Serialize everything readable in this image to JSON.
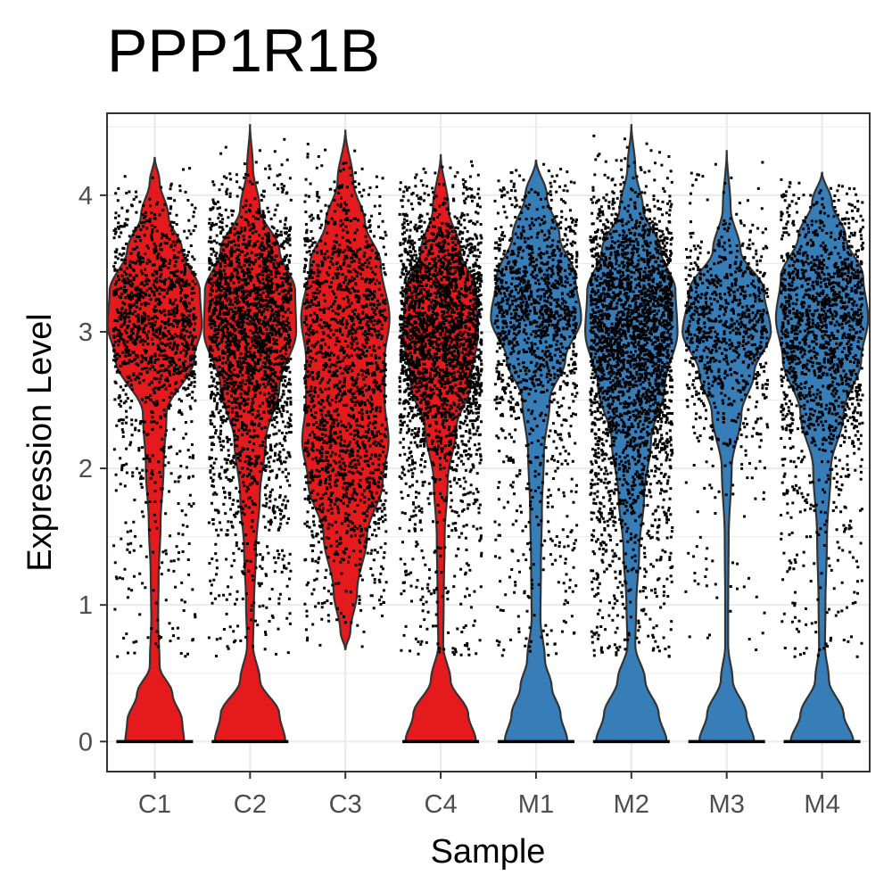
{
  "chart_data": {
    "type": "violin",
    "title": "PPP1R1B",
    "xlabel": "Sample",
    "ylabel": "Expression Level",
    "categories": [
      "C1",
      "C2",
      "C3",
      "C4",
      "M1",
      "M2",
      "M3",
      "M4"
    ],
    "ylim": [
      -0.22,
      4.6
    ],
    "yticks": [
      0,
      1,
      2,
      3,
      4
    ],
    "grid": true,
    "legend": "none",
    "colors": {
      "C1": "#e41a1c",
      "C2": "#e41a1c",
      "C3": "#e41a1c",
      "C4": "#e41a1c",
      "M1": "#377eb8",
      "M2": "#377eb8",
      "M3": "#377eb8",
      "M4": "#377eb8"
    },
    "violins": [
      {
        "name": "C1",
        "min": 0,
        "max": 4.28,
        "dots": 1300,
        "density": [
          [
            0,
            0.3
          ],
          [
            0.15,
            0.28
          ],
          [
            0.35,
            0.18
          ],
          [
            0.55,
            0.05
          ],
          [
            0.9,
            0.035
          ],
          [
            1.2,
            0.04
          ],
          [
            1.6,
            0.06
          ],
          [
            2.0,
            0.09
          ],
          [
            2.4,
            0.12
          ],
          [
            2.8,
            0.4
          ],
          [
            3.05,
            0.48
          ],
          [
            3.3,
            0.46
          ],
          [
            3.6,
            0.28
          ],
          [
            3.85,
            0.14
          ],
          [
            4.1,
            0.05
          ],
          [
            4.28,
            0.0
          ]
        ]
      },
      {
        "name": "C2",
        "min": 0,
        "max": 4.52,
        "dots": 2300,
        "density": [
          [
            0,
            0.36
          ],
          [
            0.2,
            0.3
          ],
          [
            0.45,
            0.1
          ],
          [
            0.7,
            0.03
          ],
          [
            1.0,
            0.04
          ],
          [
            1.4,
            0.06
          ],
          [
            1.8,
            0.1
          ],
          [
            2.2,
            0.16
          ],
          [
            2.6,
            0.3
          ],
          [
            3.0,
            0.47
          ],
          [
            3.3,
            0.46
          ],
          [
            3.6,
            0.3
          ],
          [
            3.9,
            0.1
          ],
          [
            4.2,
            0.03
          ],
          [
            4.52,
            0.0
          ]
        ]
      },
      {
        "name": "C3",
        "min": 0.67,
        "max": 4.48,
        "dots": 1700,
        "density": [
          [
            0.67,
            0.0
          ],
          [
            0.8,
            0.05
          ],
          [
            1.1,
            0.12
          ],
          [
            1.5,
            0.22
          ],
          [
            1.9,
            0.38
          ],
          [
            2.2,
            0.44
          ],
          [
            2.5,
            0.4
          ],
          [
            2.8,
            0.4
          ],
          [
            3.1,
            0.45
          ],
          [
            3.5,
            0.36
          ],
          [
            3.8,
            0.2
          ],
          [
            4.1,
            0.08
          ],
          [
            4.48,
            0.0
          ]
        ]
      },
      {
        "name": "C4",
        "min": 0,
        "max": 4.3,
        "dots": 2600,
        "density": [
          [
            0,
            0.36
          ],
          [
            0.2,
            0.28
          ],
          [
            0.45,
            0.1
          ],
          [
            0.7,
            0.025
          ],
          [
            1.0,
            0.03
          ],
          [
            1.5,
            0.04
          ],
          [
            1.9,
            0.07
          ],
          [
            2.3,
            0.16
          ],
          [
            2.6,
            0.3
          ],
          [
            3.0,
            0.38
          ],
          [
            3.3,
            0.36
          ],
          [
            3.6,
            0.2
          ],
          [
            3.9,
            0.08
          ],
          [
            4.3,
            0.0
          ]
        ]
      },
      {
        "name": "M1",
        "min": 0,
        "max": 4.26,
        "dots": 1400,
        "density": [
          [
            0,
            0.32
          ],
          [
            0.2,
            0.25
          ],
          [
            0.4,
            0.16
          ],
          [
            0.6,
            0.09
          ],
          [
            0.9,
            0.045
          ],
          [
            1.3,
            0.05
          ],
          [
            1.7,
            0.06
          ],
          [
            2.1,
            0.08
          ],
          [
            2.5,
            0.14
          ],
          [
            2.8,
            0.3
          ],
          [
            3.1,
            0.46
          ],
          [
            3.4,
            0.4
          ],
          [
            3.7,
            0.24
          ],
          [
            4.0,
            0.11
          ],
          [
            4.26,
            0.0
          ]
        ]
      },
      {
        "name": "M2",
        "min": 0,
        "max": 4.52,
        "dots": 2800,
        "density": [
          [
            0,
            0.36
          ],
          [
            0.2,
            0.28
          ],
          [
            0.45,
            0.14
          ],
          [
            0.7,
            0.04
          ],
          [
            1.0,
            0.05
          ],
          [
            1.4,
            0.08
          ],
          [
            1.8,
            0.13
          ],
          [
            2.2,
            0.2
          ],
          [
            2.6,
            0.34
          ],
          [
            3.0,
            0.47
          ],
          [
            3.3,
            0.45
          ],
          [
            3.6,
            0.3
          ],
          [
            3.9,
            0.12
          ],
          [
            4.2,
            0.04
          ],
          [
            4.52,
            0.0
          ]
        ]
      },
      {
        "name": "M3",
        "min": 0,
        "max": 4.33,
        "dots": 900,
        "density": [
          [
            0,
            0.28
          ],
          [
            0.2,
            0.2
          ],
          [
            0.45,
            0.06
          ],
          [
            0.7,
            0.015
          ],
          [
            1.0,
            0.015
          ],
          [
            1.5,
            0.02
          ],
          [
            2.0,
            0.05
          ],
          [
            2.4,
            0.15
          ],
          [
            2.7,
            0.28
          ],
          [
            3.0,
            0.45
          ],
          [
            3.3,
            0.38
          ],
          [
            3.6,
            0.14
          ],
          [
            3.9,
            0.04
          ],
          [
            4.33,
            0.0
          ]
        ]
      },
      {
        "name": "M4",
        "min": 0,
        "max": 4.17,
        "dots": 1600,
        "density": [
          [
            0,
            0.32
          ],
          [
            0.2,
            0.22
          ],
          [
            0.45,
            0.07
          ],
          [
            0.7,
            0.03
          ],
          [
            1.0,
            0.035
          ],
          [
            1.5,
            0.05
          ],
          [
            2.0,
            0.09
          ],
          [
            2.4,
            0.22
          ],
          [
            2.8,
            0.4
          ],
          [
            3.1,
            0.47
          ],
          [
            3.4,
            0.42
          ],
          [
            3.7,
            0.24
          ],
          [
            3.95,
            0.1
          ],
          [
            4.17,
            0.0
          ]
        ]
      }
    ]
  }
}
